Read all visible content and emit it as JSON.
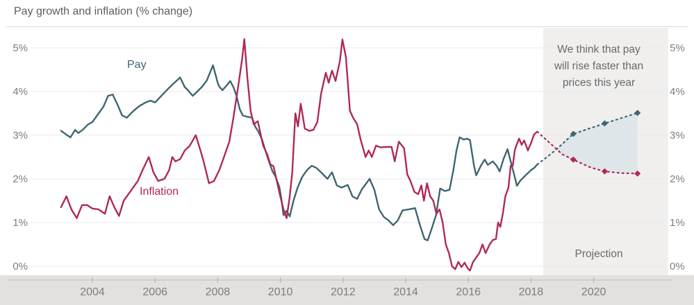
{
  "header": {
    "title": "Pay growth and inflation (% change)"
  },
  "annotation": {
    "text": "We think that pay\nwill rise faster than\nprices this year",
    "projection_label": "Projection"
  },
  "chart_data": {
    "type": "line",
    "title": "Pay growth and inflation (% change)",
    "grid": "horizontal",
    "legend_position": "inline-labels",
    "x_axis": {
      "range": [
        2003,
        2022.4
      ],
      "ticks": [
        2004,
        2006,
        2008,
        2010,
        2012,
        2014,
        2016,
        2018,
        2020
      ]
    },
    "y_axis": {
      "range": [
        -0.35,
        5.5
      ],
      "unit": "%",
      "both_sides": true,
      "ticks": [
        {
          "label": "5%",
          "value": 5
        },
        {
          "label": "4%",
          "value": 4
        },
        {
          "label": "3%",
          "value": 3
        },
        {
          "label": "2%",
          "value": 2
        },
        {
          "label": "1%",
          "value": 1
        },
        {
          "label": "0%",
          "value": 0
        }
      ]
    },
    "projection_region": {
      "start_year": 2018.39,
      "end_year": 2022.38,
      "label": "Projection"
    },
    "colors": {
      "pay": "#3d6571",
      "inflation": "#b02859",
      "projection_band": "#f0efee",
      "projection_fill": "#dbe4e9",
      "gridline": "#eaeaea",
      "axis_band": "#e3e1e0",
      "axis_line": "#c6c4c3",
      "axis_text": "#7d7d7d"
    },
    "series": [
      {
        "id": "pay",
        "label": "Pay",
        "color": "#3d6571",
        "style": "solid",
        "points": [
          [
            2003.0,
            3.1
          ],
          [
            2003.15,
            3.02
          ],
          [
            2003.3,
            2.95
          ],
          [
            2003.45,
            3.12
          ],
          [
            2003.55,
            3.05
          ],
          [
            2003.7,
            3.13
          ],
          [
            2003.85,
            3.24
          ],
          [
            2004.0,
            3.3
          ],
          [
            2004.2,
            3.5
          ],
          [
            2004.35,
            3.65
          ],
          [
            2004.5,
            3.9
          ],
          [
            2004.65,
            3.93
          ],
          [
            2004.8,
            3.7
          ],
          [
            2004.95,
            3.45
          ],
          [
            2005.1,
            3.4
          ],
          [
            2005.3,
            3.55
          ],
          [
            2005.5,
            3.67
          ],
          [
            2005.7,
            3.75
          ],
          [
            2005.85,
            3.79
          ],
          [
            2006.0,
            3.75
          ],
          [
            2006.2,
            3.9
          ],
          [
            2006.4,
            4.05
          ],
          [
            2006.6,
            4.19
          ],
          [
            2006.8,
            4.32
          ],
          [
            2006.95,
            4.1
          ],
          [
            2007.05,
            4.03
          ],
          [
            2007.2,
            3.9
          ],
          [
            2007.35,
            4.0
          ],
          [
            2007.5,
            4.11
          ],
          [
            2007.65,
            4.25
          ],
          [
            2007.85,
            4.6
          ],
          [
            2008.0,
            4.2
          ],
          [
            2008.05,
            4.11
          ],
          [
            2008.15,
            4.03
          ],
          [
            2008.3,
            4.15
          ],
          [
            2008.4,
            4.24
          ],
          [
            2008.5,
            4.1
          ],
          [
            2008.6,
            3.9
          ],
          [
            2008.7,
            3.6
          ],
          [
            2008.8,
            3.45
          ],
          [
            2008.95,
            3.42
          ],
          [
            2009.1,
            3.4
          ],
          [
            2009.2,
            3.19
          ],
          [
            2009.3,
            3.08
          ],
          [
            2009.42,
            2.89
          ],
          [
            2009.52,
            2.65
          ],
          [
            2009.63,
            2.41
          ],
          [
            2009.75,
            2.17
          ],
          [
            2009.85,
            2.05
          ],
          [
            2009.97,
            1.81
          ],
          [
            2010.03,
            1.55
          ],
          [
            2010.1,
            1.17
          ],
          [
            2010.2,
            1.27
          ],
          [
            2010.3,
            1.14
          ],
          [
            2010.42,
            1.5
          ],
          [
            2010.55,
            1.8
          ],
          [
            2010.7,
            2.05
          ],
          [
            2010.85,
            2.2
          ],
          [
            2011.0,
            2.3
          ],
          [
            2011.15,
            2.25
          ],
          [
            2011.3,
            2.15
          ],
          [
            2011.5,
            2.0
          ],
          [
            2011.65,
            2.15
          ],
          [
            2011.8,
            1.85
          ],
          [
            2011.95,
            1.8
          ],
          [
            2012.15,
            1.86
          ],
          [
            2012.3,
            1.6
          ],
          [
            2012.45,
            1.54
          ],
          [
            2012.6,
            1.76
          ],
          [
            2012.85,
            2.0
          ],
          [
            2013.0,
            1.75
          ],
          [
            2013.15,
            1.3
          ],
          [
            2013.3,
            1.13
          ],
          [
            2013.45,
            1.05
          ],
          [
            2013.6,
            0.94
          ],
          [
            2013.75,
            1.05
          ],
          [
            2013.9,
            1.28
          ],
          [
            2014.1,
            1.3
          ],
          [
            2014.3,
            1.33
          ],
          [
            2014.45,
            0.95
          ],
          [
            2014.6,
            0.62
          ],
          [
            2014.7,
            0.59
          ],
          [
            2014.85,
            0.9
          ],
          [
            2014.97,
            1.17
          ],
          [
            2015.1,
            1.78
          ],
          [
            2015.25,
            1.72
          ],
          [
            2015.4,
            1.75
          ],
          [
            2015.52,
            2.2
          ],
          [
            2015.62,
            2.65
          ],
          [
            2015.72,
            2.95
          ],
          [
            2015.85,
            2.9
          ],
          [
            2015.95,
            2.92
          ],
          [
            2016.05,
            2.89
          ],
          [
            2016.18,
            2.3
          ],
          [
            2016.25,
            2.08
          ],
          [
            2016.4,
            2.3
          ],
          [
            2016.52,
            2.44
          ],
          [
            2016.62,
            2.32
          ],
          [
            2016.78,
            2.4
          ],
          [
            2016.9,
            2.3
          ],
          [
            2017.0,
            2.17
          ],
          [
            2017.12,
            2.45
          ],
          [
            2017.25,
            2.68
          ],
          [
            2017.35,
            2.4
          ],
          [
            2017.45,
            2.13
          ],
          [
            2017.55,
            1.84
          ],
          [
            2017.65,
            1.95
          ],
          [
            2017.78,
            2.05
          ],
          [
            2017.9,
            2.13
          ],
          [
            2018.0,
            2.2
          ],
          [
            2018.1,
            2.25
          ],
          [
            2018.2,
            2.33
          ]
        ]
      },
      {
        "id": "inflation",
        "label": "Inflation",
        "color": "#b02859",
        "style": "solid",
        "points": [
          [
            2003.0,
            1.35
          ],
          [
            2003.17,
            1.6
          ],
          [
            2003.33,
            1.3
          ],
          [
            2003.5,
            1.1
          ],
          [
            2003.67,
            1.4
          ],
          [
            2003.83,
            1.4
          ],
          [
            2004.0,
            1.32
          ],
          [
            2004.2,
            1.3
          ],
          [
            2004.4,
            1.2
          ],
          [
            2004.55,
            1.6
          ],
          [
            2004.7,
            1.35
          ],
          [
            2004.85,
            1.15
          ],
          [
            2005.0,
            1.5
          ],
          [
            2005.15,
            1.65
          ],
          [
            2005.3,
            1.8
          ],
          [
            2005.45,
            1.95
          ],
          [
            2005.6,
            2.2
          ],
          [
            2005.8,
            2.5
          ],
          [
            2005.95,
            2.15
          ],
          [
            2006.1,
            1.95
          ],
          [
            2006.3,
            2.0
          ],
          [
            2006.45,
            2.2
          ],
          [
            2006.55,
            2.5
          ],
          [
            2006.65,
            2.4
          ],
          [
            2006.8,
            2.45
          ],
          [
            2006.95,
            2.65
          ],
          [
            2007.1,
            2.75
          ],
          [
            2007.3,
            3.0
          ],
          [
            2007.45,
            2.65
          ],
          [
            2007.55,
            2.4
          ],
          [
            2007.72,
            1.9
          ],
          [
            2007.88,
            1.95
          ],
          [
            2008.05,
            2.2
          ],
          [
            2008.2,
            2.5
          ],
          [
            2008.37,
            2.85
          ],
          [
            2008.5,
            3.4
          ],
          [
            2008.65,
            4.1
          ],
          [
            2008.78,
            4.75
          ],
          [
            2008.85,
            5.2
          ],
          [
            2008.95,
            4.3
          ],
          [
            2009.05,
            3.55
          ],
          [
            2009.15,
            3.25
          ],
          [
            2009.28,
            3.32
          ],
          [
            2009.45,
            2.76
          ],
          [
            2009.58,
            2.56
          ],
          [
            2009.68,
            2.33
          ],
          [
            2009.78,
            2.29
          ],
          [
            2009.88,
            1.97
          ],
          [
            2009.98,
            1.65
          ],
          [
            2010.1,
            1.3
          ],
          [
            2010.2,
            1.1
          ],
          [
            2010.3,
            1.6
          ],
          [
            2010.38,
            2.15
          ],
          [
            2010.48,
            3.5
          ],
          [
            2010.56,
            3.2
          ],
          [
            2010.65,
            3.72
          ],
          [
            2010.78,
            3.15
          ],
          [
            2010.92,
            3.1
          ],
          [
            2011.05,
            3.12
          ],
          [
            2011.18,
            3.3
          ],
          [
            2011.3,
            3.95
          ],
          [
            2011.45,
            4.43
          ],
          [
            2011.54,
            4.2
          ],
          [
            2011.65,
            4.48
          ],
          [
            2011.76,
            4.24
          ],
          [
            2011.9,
            4.7
          ],
          [
            2011.98,
            5.19
          ],
          [
            2012.09,
            4.79
          ],
          [
            2012.22,
            3.56
          ],
          [
            2012.32,
            3.4
          ],
          [
            2012.45,
            3.25
          ],
          [
            2012.56,
            2.9
          ],
          [
            2012.72,
            2.5
          ],
          [
            2012.82,
            2.65
          ],
          [
            2012.92,
            2.5
          ],
          [
            2013.05,
            2.76
          ],
          [
            2013.2,
            2.72
          ],
          [
            2013.4,
            2.73
          ],
          [
            2013.55,
            2.73
          ],
          [
            2013.65,
            2.4
          ],
          [
            2013.78,
            2.85
          ],
          [
            2013.95,
            2.7
          ],
          [
            2014.05,
            2.1
          ],
          [
            2014.15,
            1.95
          ],
          [
            2014.28,
            1.7
          ],
          [
            2014.4,
            1.65
          ],
          [
            2014.5,
            1.85
          ],
          [
            2014.58,
            1.5
          ],
          [
            2014.68,
            1.9
          ],
          [
            2014.78,
            1.6
          ],
          [
            2014.88,
            1.5
          ],
          [
            2014.98,
            1.2
          ],
          [
            2015.08,
            1.3
          ],
          [
            2015.18,
            1.0
          ],
          [
            2015.28,
            0.5
          ],
          [
            2015.38,
            0.3
          ],
          [
            2015.48,
            0.0
          ],
          [
            2015.58,
            -0.07
          ],
          [
            2015.68,
            0.1
          ],
          [
            2015.78,
            -0.02
          ],
          [
            2015.88,
            0.08
          ],
          [
            2015.98,
            -0.05
          ],
          [
            2016.05,
            -0.1
          ],
          [
            2016.15,
            0.1
          ],
          [
            2016.25,
            0.2
          ],
          [
            2016.35,
            0.3
          ],
          [
            2016.45,
            0.5
          ],
          [
            2016.55,
            0.3
          ],
          [
            2016.68,
            0.5
          ],
          [
            2016.78,
            0.6
          ],
          [
            2016.88,
            0.62
          ],
          [
            2016.95,
            1.0
          ],
          [
            2017.02,
            0.9
          ],
          [
            2017.1,
            1.2
          ],
          [
            2017.18,
            1.6
          ],
          [
            2017.28,
            1.8
          ],
          [
            2017.35,
            2.3
          ],
          [
            2017.42,
            2.3
          ],
          [
            2017.48,
            2.65
          ],
          [
            2017.55,
            2.8
          ],
          [
            2017.62,
            2.92
          ],
          [
            2017.7,
            2.78
          ],
          [
            2017.78,
            2.88
          ],
          [
            2017.9,
            2.65
          ],
          [
            2018.0,
            2.82
          ],
          [
            2018.1,
            3.02
          ],
          [
            2018.2,
            3.08
          ]
        ]
      },
      {
        "id": "pay_projection",
        "label": "Pay projection",
        "color": "#3d6571",
        "style": "dotted",
        "points": [
          [
            2018.2,
            2.33
          ],
          [
            2018.55,
            2.52
          ],
          [
            2018.85,
            2.7
          ],
          [
            2019.35,
            3.03
          ],
          [
            2020.35,
            3.27
          ],
          [
            2021.4,
            3.51
          ]
        ],
        "markers": [
          [
            2019.35,
            3.03
          ],
          [
            2020.35,
            3.27
          ],
          [
            2021.4,
            3.51
          ]
        ]
      },
      {
        "id": "inflation_projection",
        "label": "Inflation projection",
        "color": "#b02859",
        "style": "dotted",
        "points": [
          [
            2018.2,
            3.08
          ],
          [
            2018.6,
            2.82
          ],
          [
            2019.0,
            2.56
          ],
          [
            2019.35,
            2.44
          ],
          [
            2019.9,
            2.26
          ],
          [
            2020.35,
            2.17
          ],
          [
            2020.9,
            2.13
          ],
          [
            2021.4,
            2.12
          ]
        ],
        "markers": [
          [
            2019.35,
            2.44
          ],
          [
            2020.35,
            2.17
          ],
          [
            2021.4,
            2.12
          ]
        ]
      }
    ]
  }
}
